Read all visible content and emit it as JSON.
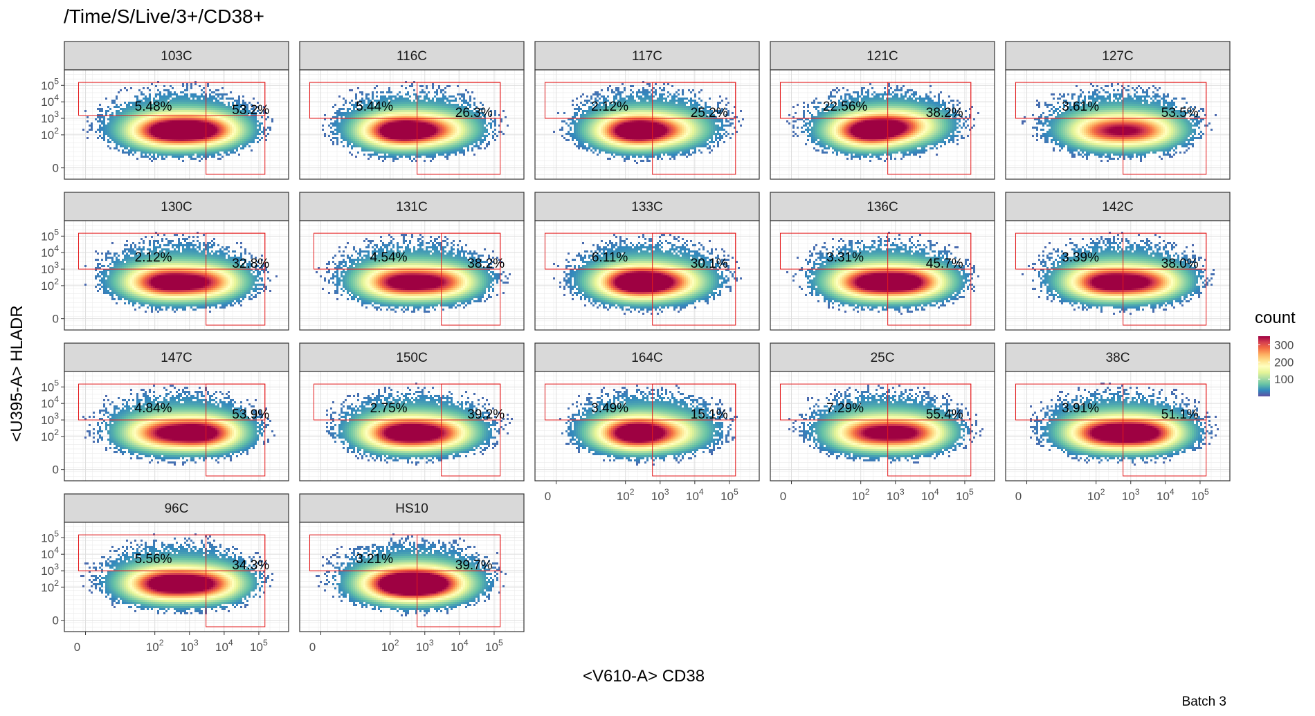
{
  "chart_data": {
    "type": "heatmap",
    "subtype": "faceted 2D density (hex-bin count)",
    "title": "/Time/S/Live/3+/CD38+",
    "xlabel": "<V610-A> CD38",
    "ylabel": "<U395-A> HLADR",
    "caption": "Batch 3",
    "x_scale": "biexponential",
    "y_scale": "biexponential",
    "x_ticks": [
      {
        "v": 0,
        "l": "0"
      },
      {
        "v": 100,
        "b": "10",
        "e": "2"
      },
      {
        "v": 1000,
        "b": "10",
        "e": "3"
      },
      {
        "v": 10000,
        "b": "10",
        "e": "4"
      },
      {
        "v": 100000,
        "b": "10",
        "e": "5"
      }
    ],
    "y_ticks": [
      {
        "v": 0,
        "l": "0"
      },
      {
        "v": 100,
        "b": "10",
        "e": "2"
      },
      {
        "v": 1000,
        "b": "10",
        "e": "3"
      },
      {
        "v": 10000,
        "b": "10",
        "e": "4"
      },
      {
        "v": 100000,
        "b": "10",
        "e": "5"
      }
    ],
    "legend": {
      "title": "count",
      "placement": "right",
      "ticks": [
        100,
        200,
        300
      ],
      "range": [
        0,
        350
      ],
      "colors": [
        "#5E4FA2",
        "#3288BD",
        "#66C2A5",
        "#ABDDA4",
        "#E6F598",
        "#FFFFBF",
        "#FEE08B",
        "#FDAE61",
        "#F46D43",
        "#D53E4F",
        "#9E0142"
      ]
    },
    "gate_color": "#E41A1C",
    "gate_y_range": [
      1000,
      150000
    ],
    "panels": [
      {
        "name": "103C",
        "gx": [
          -50,
          3000,
          150000
        ],
        "gy": 1500,
        "upper_left": "5.48%",
        "upper_right": "53.2%",
        "modes": [
          [
            180,
            200,
            0.9
          ],
          [
            2500,
            220,
            0.85
          ]
        ]
      },
      {
        "name": "116C",
        "gx": [
          -80,
          600,
          150000
        ],
        "gy": 1000,
        "upper_left": "5.44%",
        "upper_right": "26.3%",
        "modes": [
          [
            150,
            200,
            1.0
          ],
          [
            1800,
            220,
            0.55
          ]
        ]
      },
      {
        "name": "117C",
        "gx": [
          -80,
          600,
          150000
        ],
        "gy": 1000,
        "upper_left": "2.12%",
        "upper_right": "25.2%",
        "modes": [
          [
            150,
            200,
            1.0
          ],
          [
            1500,
            220,
            0.45
          ]
        ]
      },
      {
        "name": "121C",
        "gx": [
          -80,
          600,
          150000
        ],
        "gy": 1000,
        "upper_left": "22.56%",
        "upper_right": "38.2%",
        "modes": [
          [
            150,
            200,
            1.0
          ],
          [
            1500,
            400,
            0.55
          ]
        ]
      },
      {
        "name": "127C",
        "gx": [
          -80,
          600,
          150000
        ],
        "gy": 1000,
        "upper_left": "3.61%",
        "upper_right": "53.5%",
        "modes": [
          [
            150,
            200,
            0.6
          ],
          [
            2000,
            200,
            0.6
          ]
        ]
      },
      {
        "name": "130C",
        "gx": [
          -50,
          3000,
          150000
        ],
        "gy": 1000,
        "upper_left": "2.12%",
        "upper_right": "32.8%",
        "modes": [
          [
            150,
            180,
            0.85
          ],
          [
            2500,
            180,
            0.7
          ]
        ]
      },
      {
        "name": "131C",
        "gx": [
          -50,
          3000,
          150000
        ],
        "gy": 1000,
        "upper_left": "4.54%",
        "upper_right": "38.2%",
        "modes": [
          [
            150,
            180,
            0.8
          ],
          [
            2500,
            180,
            0.7
          ]
        ]
      },
      {
        "name": "133C",
        "gx": [
          -80,
          600,
          150000
        ],
        "gy": 1000,
        "upper_left": "6.11%",
        "upper_right": "30.1%",
        "modes": [
          [
            150,
            180,
            1.0
          ],
          [
            1500,
            180,
            0.6
          ]
        ]
      },
      {
        "name": "136C",
        "gx": [
          -80,
          600,
          150000
        ],
        "gy": 1000,
        "upper_left": "3.31%",
        "upper_right": "45.7%",
        "modes": [
          [
            150,
            180,
            0.85
          ],
          [
            2500,
            180,
            0.85
          ]
        ]
      },
      {
        "name": "142C",
        "gx": [
          -80,
          600,
          150000
        ],
        "gy": 1000,
        "upper_left": "3.39%",
        "upper_right": "38.0%",
        "modes": [
          [
            150,
            180,
            0.85
          ],
          [
            2500,
            180,
            0.7
          ]
        ]
      },
      {
        "name": "147C",
        "gx": [
          -50,
          3000,
          150000
        ],
        "gy": 1000,
        "upper_left": "4.84%",
        "upper_right": "53.9%",
        "modes": [
          [
            150,
            180,
            0.7
          ],
          [
            2500,
            180,
            0.9
          ]
        ]
      },
      {
        "name": "150C",
        "gx": [
          -50,
          3000,
          150000
        ],
        "gy": 1000,
        "upper_left": "2.75%",
        "upper_right": "39.2%",
        "modes": [
          [
            150,
            180,
            0.85
          ],
          [
            2000,
            180,
            0.7
          ]
        ]
      },
      {
        "name": "164C",
        "gx": [
          -80,
          600,
          150000
        ],
        "gy": 1000,
        "upper_left": "3.49%",
        "upper_right": "15.1%",
        "modes": [
          [
            150,
            180,
            1.0
          ],
          [
            1500,
            180,
            0.4
          ]
        ]
      },
      {
        "name": "25C",
        "gx": [
          -80,
          600,
          150000
        ],
        "gy": 1000,
        "upper_left": "7.29%",
        "upper_right": "55.4%",
        "modes": [
          [
            150,
            180,
            0.7
          ],
          [
            2500,
            180,
            0.75
          ]
        ]
      },
      {
        "name": "38C",
        "gx": [
          -80,
          600,
          150000
        ],
        "gy": 1000,
        "upper_left": "3.91%",
        "upper_right": "51.1%",
        "modes": [
          [
            150,
            180,
            0.85
          ],
          [
            2500,
            180,
            0.9
          ]
        ]
      },
      {
        "name": "96C",
        "gx": [
          -50,
          3000,
          150000
        ],
        "gy": 1000,
        "upper_left": "5.56%",
        "upper_right": "34.3%",
        "modes": [
          [
            150,
            180,
            0.9
          ],
          [
            2500,
            180,
            0.8
          ]
        ]
      },
      {
        "name": "HS10",
        "gx": [
          -80,
          600,
          150000
        ],
        "gy": 1000,
        "upper_left": "3.21%",
        "upper_right": "39.7%",
        "modes": [
          [
            150,
            180,
            1.0
          ],
          [
            1500,
            180,
            0.9
          ]
        ]
      }
    ]
  }
}
